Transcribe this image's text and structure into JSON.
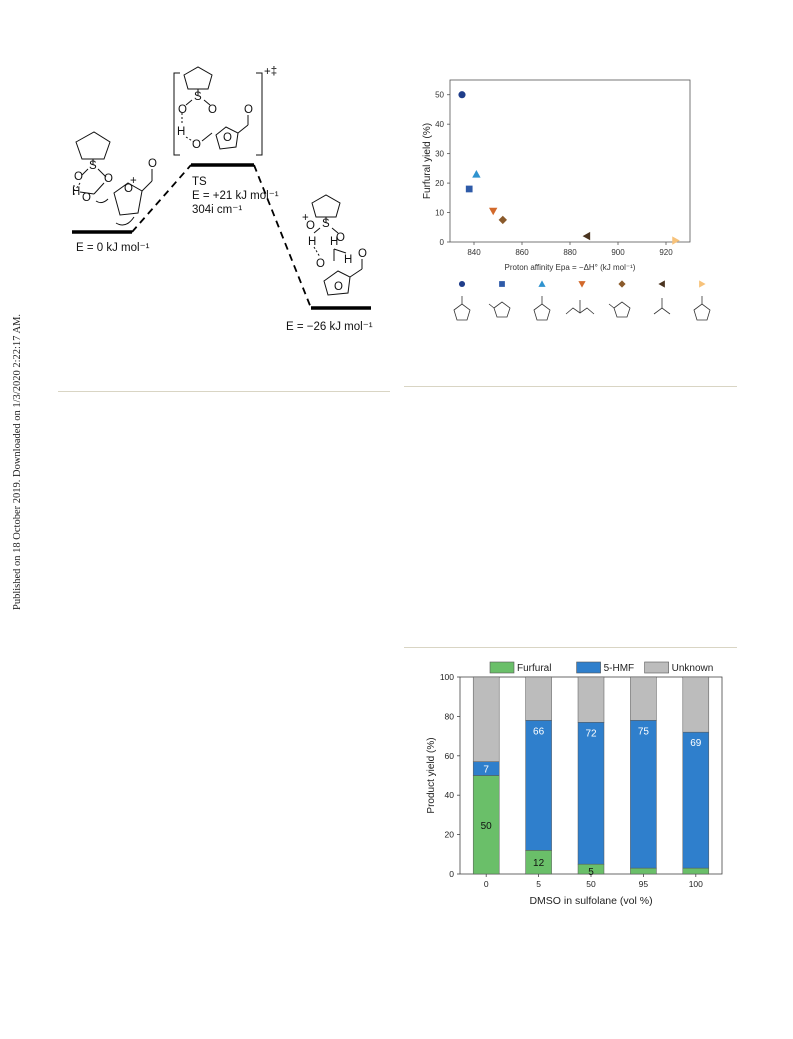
{
  "sidebar": {
    "published_text": "Published on 18 October 2019. Downloaded on 1/3/2020 2:22:17 AM."
  },
  "energy_diagram": {
    "ts_label": "TS",
    "ts_charge": "+‡",
    "reactant_energy": "E = 0 kJ mol⁻¹",
    "ts_energy": "E = +21 kJ mol⁻¹",
    "ts_frequency": "304i cm⁻¹",
    "product_energy": "E = −26 kJ mol⁻¹",
    "atoms": {
      "S": "S",
      "O": "O",
      "H": "H",
      "plus": "+"
    }
  },
  "chart_data": [
    {
      "type": "scatter",
      "title": "",
      "xlabel": "Proton affinity Epa = −ΔH° (kJ mol⁻¹)",
      "ylabel": "Furfural yield (%)",
      "xlim": [
        830,
        930
      ],
      "ylim": [
        0,
        55
      ],
      "xticks": [
        840,
        860,
        880,
        900,
        920
      ],
      "yticks": [
        0,
        10,
        20,
        30,
        40,
        50
      ],
      "series": [
        {
          "marker": "circle",
          "color": "#1f3d8a",
          "x": 835,
          "y": 50
        },
        {
          "marker": "square",
          "color": "#2e5aa8",
          "x": 838,
          "y": 18
        },
        {
          "marker": "triangle-up",
          "color": "#2f93cf",
          "x": 841,
          "y": 23
        },
        {
          "marker": "triangle-down",
          "color": "#d2692b",
          "x": 848,
          "y": 10.5
        },
        {
          "marker": "diamond",
          "color": "#8a5a2b",
          "x": 852,
          "y": 7.5
        },
        {
          "marker": "triangle-left",
          "color": "#4a3420",
          "x": 887,
          "y": 2
        },
        {
          "marker": "triangle-right",
          "color": "#f7c27a",
          "x": 924,
          "y": 0.5
        }
      ]
    },
    {
      "type": "bar",
      "stacked": true,
      "title": "",
      "xlabel": "DMSO in sulfolane (vol %)",
      "ylabel": "Product yield (%)",
      "categories": [
        "0",
        "5",
        "50",
        "95",
        "100"
      ],
      "ylim": [
        0,
        100
      ],
      "yticks": [
        0,
        20,
        40,
        60,
        80,
        100
      ],
      "legend_position": "top",
      "series": [
        {
          "name": "Furfural",
          "color": "#6abf69",
          "values": [
            50,
            12,
            5,
            3,
            3
          ],
          "labels": [
            "50",
            "12",
            "5",
            "",
            ""
          ]
        },
        {
          "name": "5-HMF",
          "color": "#2f7fcc",
          "values": [
            7,
            66,
            72,
            75,
            69
          ],
          "labels": [
            "7",
            "66",
            "72",
            "75",
            "69"
          ]
        },
        {
          "name": "Unknown",
          "color": "#bcbcbc",
          "values": [
            43,
            22,
            23,
            22,
            28
          ],
          "labels": [
            "",
            "",
            "",
            "",
            ""
          ]
        }
      ]
    }
  ]
}
